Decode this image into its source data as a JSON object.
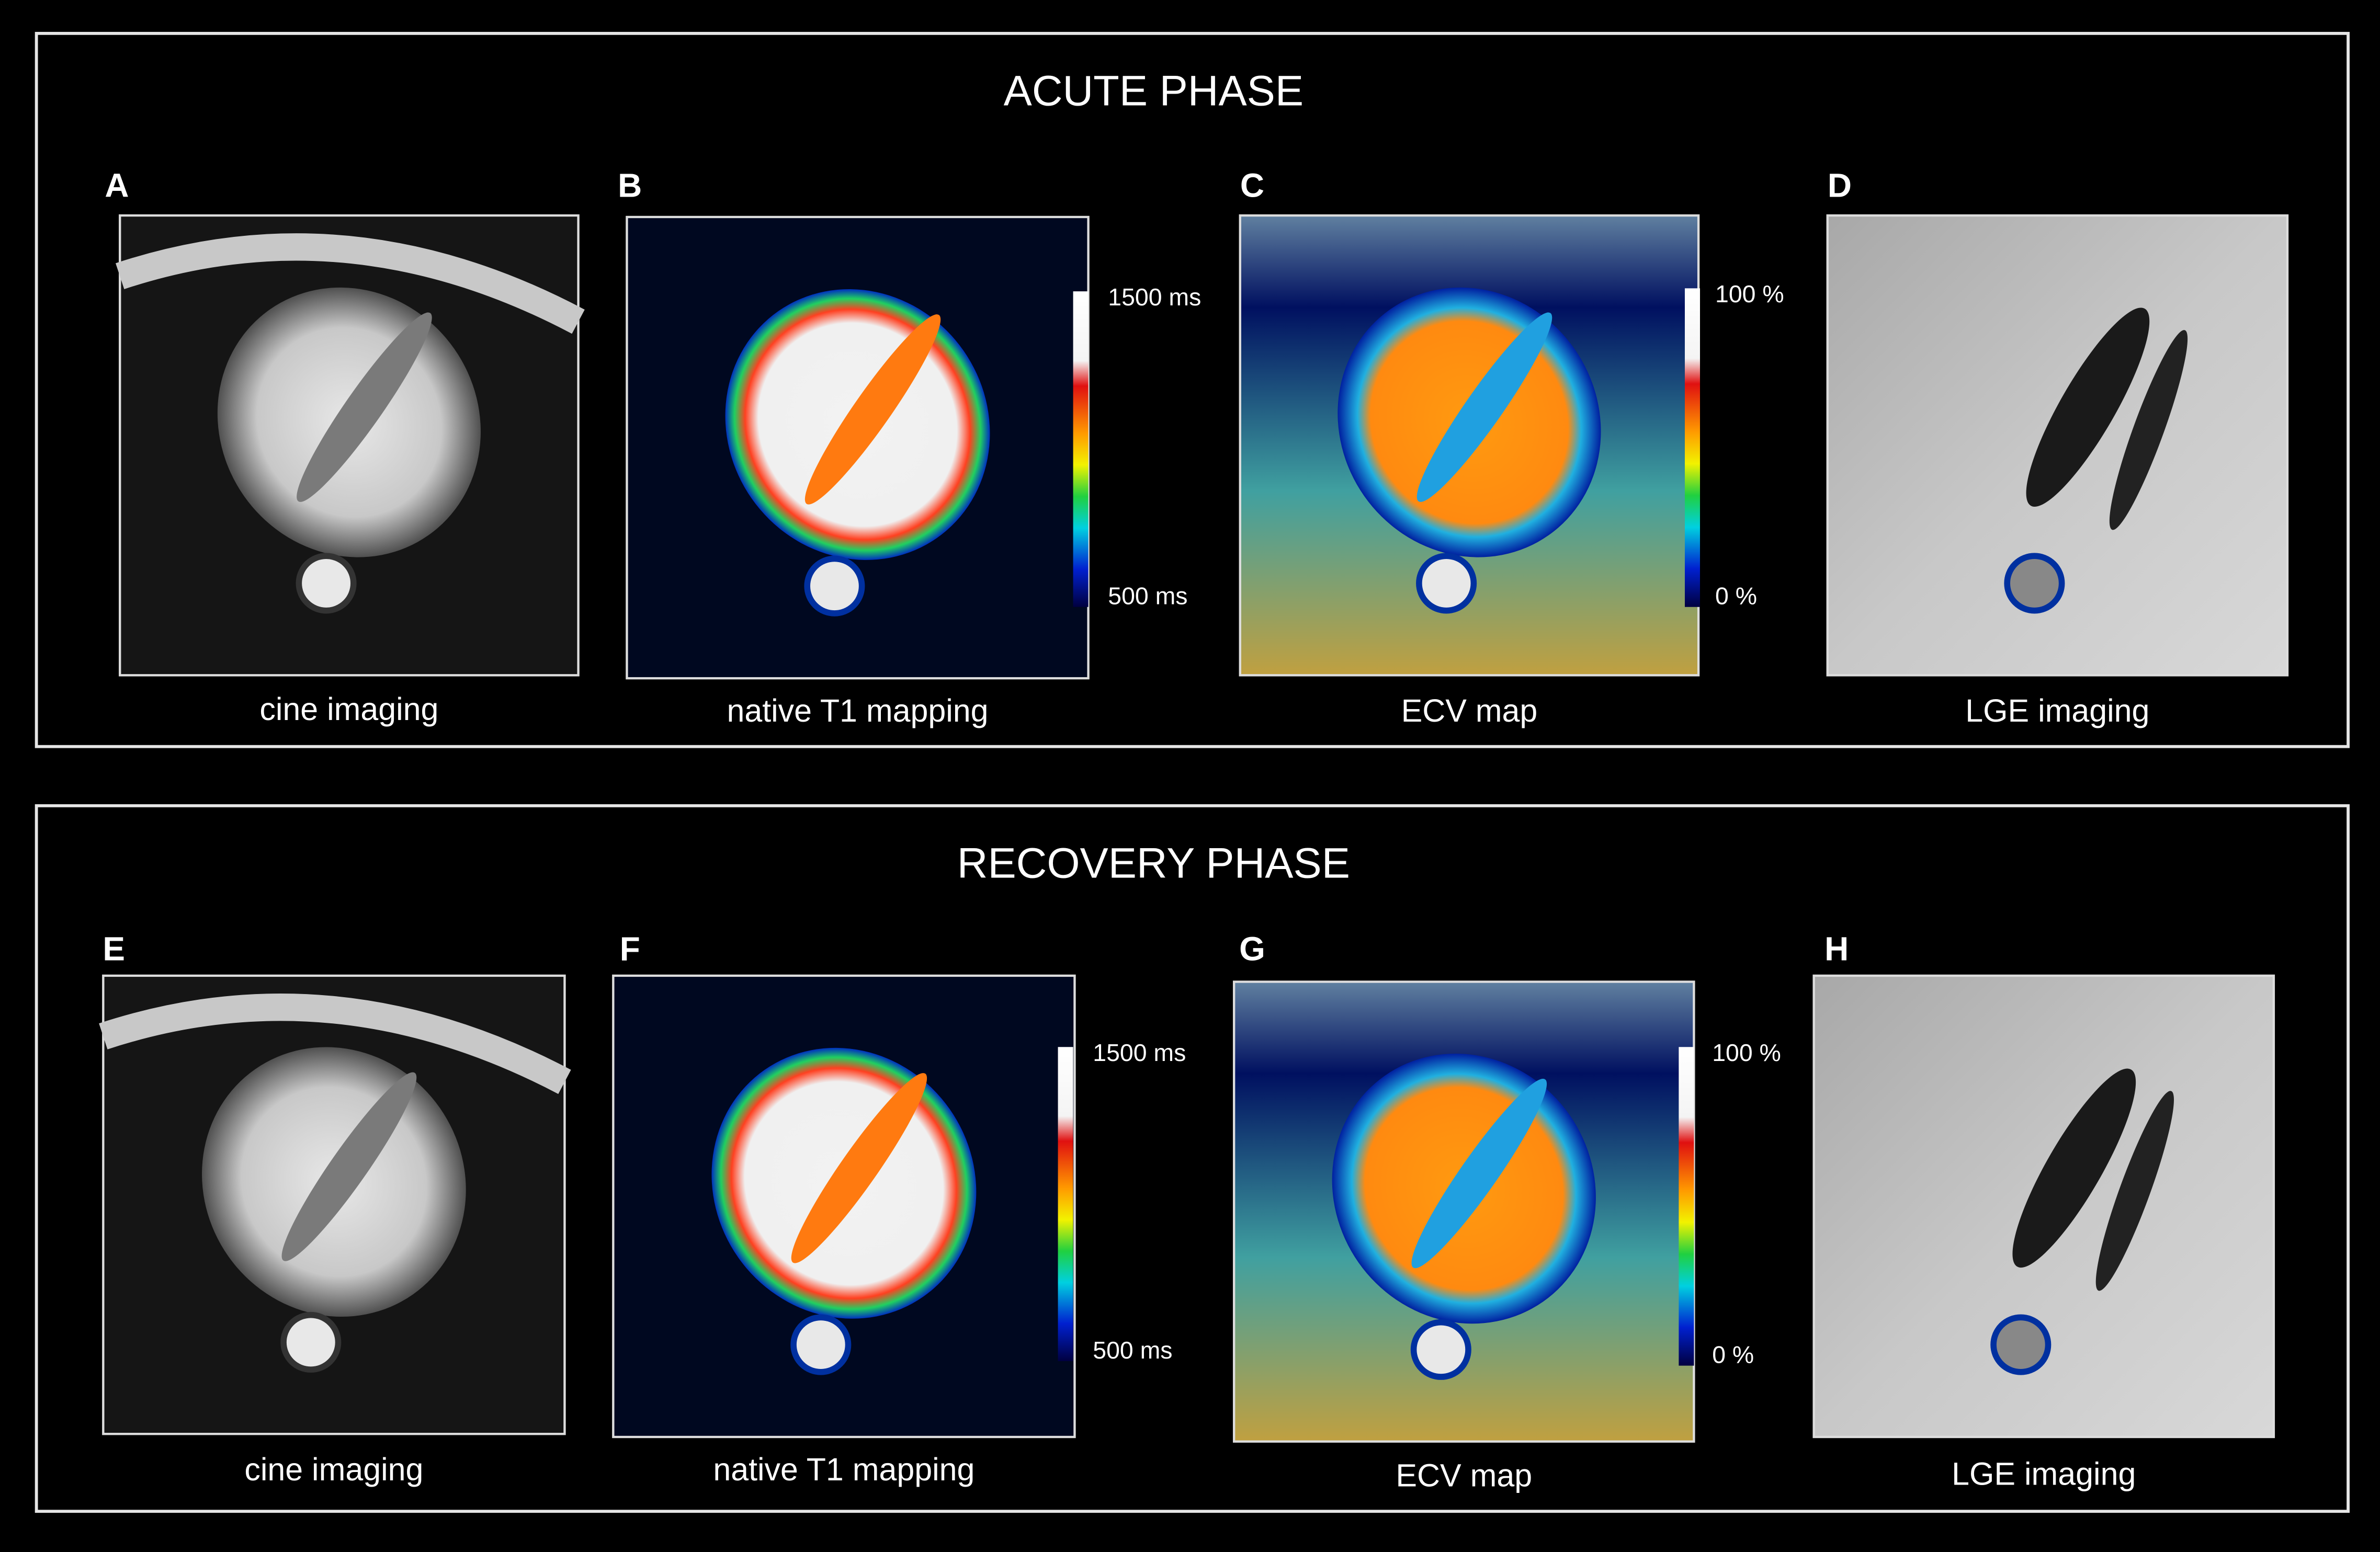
{
  "sections": [
    {
      "title": "ACUTE PHASE",
      "panels": [
        {
          "letter": "A",
          "caption": "cine imaging"
        },
        {
          "letter": "B",
          "caption": "native T1 mapping",
          "scale": [
            "1500 ms",
            "500 ms"
          ]
        },
        {
          "letter": "C",
          "caption": "ECV map",
          "scale": [
            "100 %",
            "0 %"
          ]
        },
        {
          "letter": "D",
          "caption": "LGE imaging"
        }
      ]
    },
    {
      "title": "RECOVERY PHASE",
      "panels": [
        {
          "letter": "E",
          "caption": "cine imaging"
        },
        {
          "letter": "F",
          "caption": "native T1 mapping",
          "scale": [
            "1500 ms",
            "500 ms"
          ]
        },
        {
          "letter": "G",
          "caption": "ECV map",
          "scale": [
            "100 %",
            "0 %"
          ]
        },
        {
          "letter": "H",
          "caption": "LGE imaging"
        }
      ]
    }
  ]
}
